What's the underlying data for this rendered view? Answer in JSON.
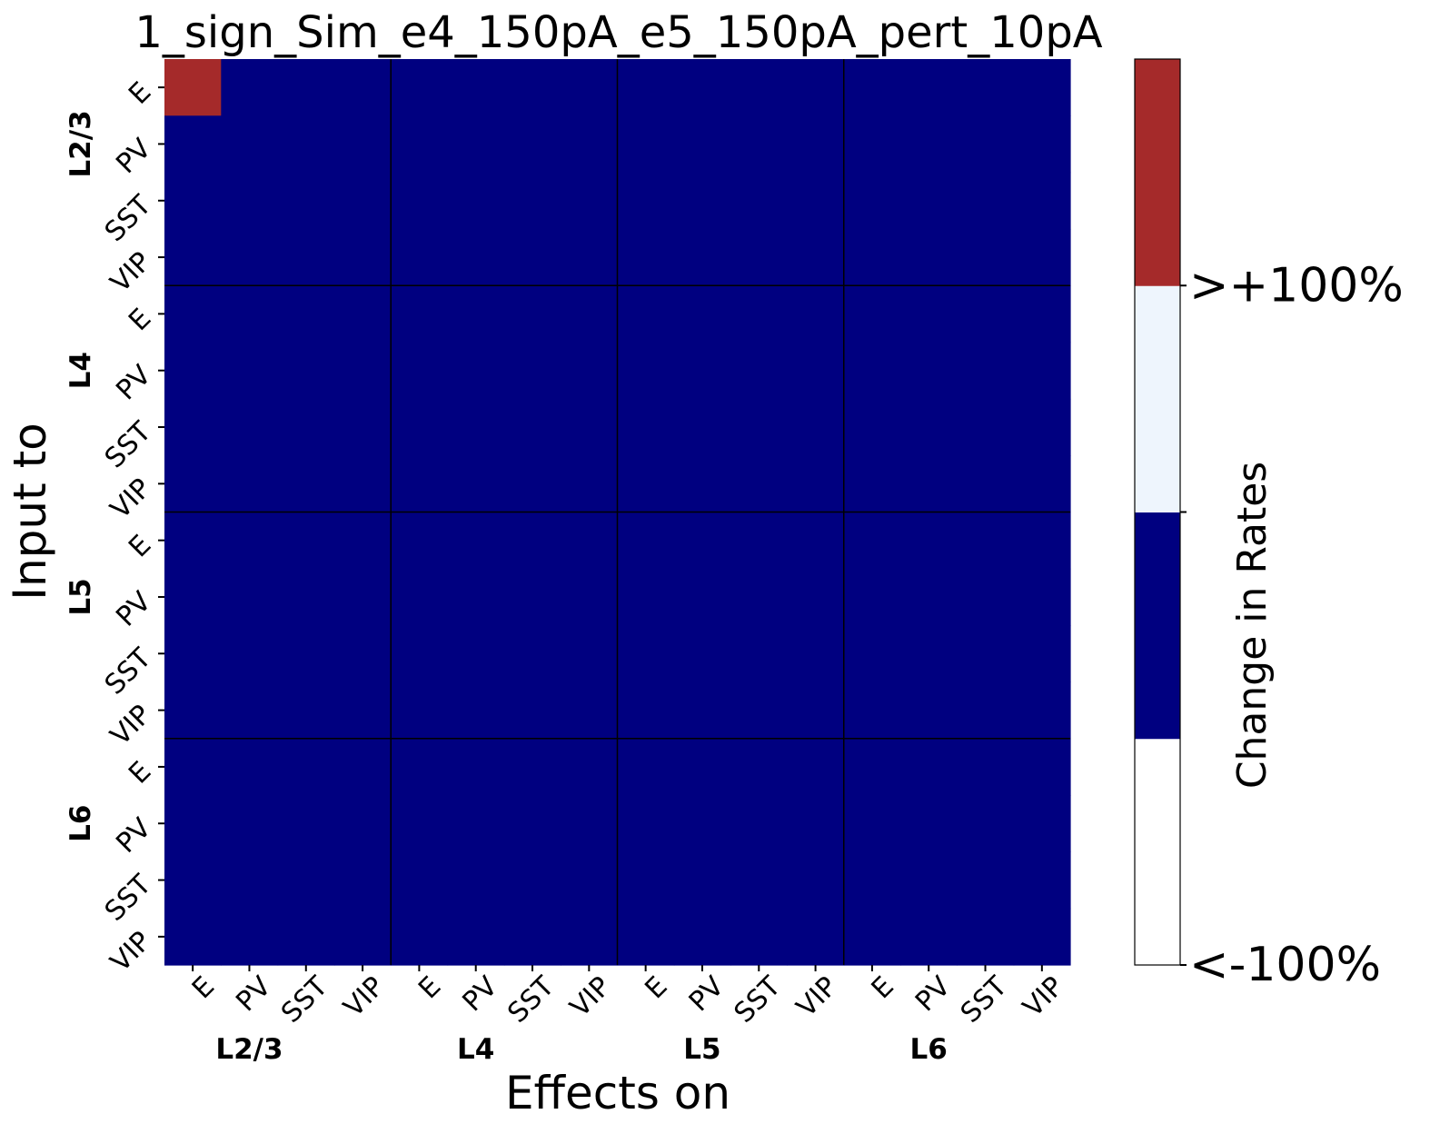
{
  "chart_data": {
    "type": "heatmap",
    "title": "1_sign_Sim_e4_150pA_e5_150pA_pert_10pA",
    "xlabel": "Effects on",
    "ylabel": "Input to",
    "cell_types": [
      "E",
      "PV",
      "SST",
      "VIP"
    ],
    "layers": [
      "L2/3",
      "L4",
      "L5",
      "L6"
    ],
    "x_tick_labels": [
      "E",
      "PV",
      "SST",
      "VIP",
      "E",
      "PV",
      "SST",
      "VIP",
      "E",
      "PV",
      "SST",
      "VIP",
      "E",
      "PV",
      "SST",
      "VIP"
    ],
    "y_tick_labels": [
      "E",
      "PV",
      "SST",
      "VIP",
      "E",
      "PV",
      "SST",
      "VIP",
      "E",
      "PV",
      "SST",
      "VIP",
      "E",
      "PV",
      "SST",
      "VIP"
    ],
    "matrix_levels": [
      [
        3,
        1,
        1,
        1,
        1,
        1,
        1,
        1,
        1,
        1,
        1,
        1,
        1,
        1,
        1,
        1
      ],
      [
        1,
        1,
        1,
        1,
        1,
        1,
        1,
        1,
        1,
        1,
        1,
        1,
        1,
        1,
        1,
        1
      ],
      [
        1,
        1,
        1,
        1,
        1,
        1,
        1,
        1,
        1,
        1,
        1,
        1,
        1,
        1,
        1,
        1
      ],
      [
        1,
        1,
        1,
        1,
        1,
        1,
        1,
        1,
        1,
        1,
        1,
        1,
        1,
        1,
        1,
        1
      ],
      [
        1,
        1,
        1,
        1,
        1,
        1,
        1,
        1,
        1,
        1,
        1,
        1,
        1,
        1,
        1,
        1
      ],
      [
        1,
        1,
        1,
        1,
        1,
        1,
        1,
        1,
        1,
        1,
        1,
        1,
        1,
        1,
        1,
        1
      ],
      [
        1,
        1,
        1,
        1,
        1,
        1,
        1,
        1,
        1,
        1,
        1,
        1,
        1,
        1,
        1,
        1
      ],
      [
        1,
        1,
        1,
        1,
        1,
        1,
        1,
        1,
        1,
        1,
        1,
        1,
        1,
        1,
        1,
        1
      ],
      [
        1,
        1,
        1,
        1,
        1,
        1,
        1,
        1,
        1,
        1,
        1,
        1,
        1,
        1,
        1,
        1
      ],
      [
        1,
        1,
        1,
        1,
        1,
        1,
        1,
        1,
        1,
        1,
        1,
        1,
        1,
        1,
        1,
        1
      ],
      [
        1,
        1,
        1,
        1,
        1,
        1,
        1,
        1,
        1,
        1,
        1,
        1,
        1,
        1,
        1,
        1
      ],
      [
        1,
        1,
        1,
        1,
        1,
        1,
        1,
        1,
        1,
        1,
        1,
        1,
        1,
        1,
        1,
        1
      ],
      [
        1,
        1,
        1,
        1,
        1,
        1,
        1,
        1,
        1,
        1,
        1,
        1,
        1,
        1,
        1,
        1
      ],
      [
        1,
        1,
        1,
        1,
        1,
        1,
        1,
        1,
        1,
        1,
        1,
        1,
        1,
        1,
        1,
        1
      ],
      [
        1,
        1,
        1,
        1,
        1,
        1,
        1,
        1,
        1,
        1,
        1,
        1,
        1,
        1,
        1,
        1
      ],
      [
        1,
        1,
        1,
        1,
        1,
        1,
        1,
        1,
        1,
        1,
        1,
        1,
        1,
        1,
        1,
        1
      ]
    ],
    "colorbar": {
      "label": "Change in Rates",
      "levels": [
        {
          "level": 0,
          "color": "#ffffff"
        },
        {
          "level": 1,
          "color": "#000080"
        },
        {
          "level": 2,
          "color": "#eef5fd"
        },
        {
          "level": 3,
          "color": "#a52a2a"
        }
      ],
      "tick_labels": [
        {
          "text": "<-100%",
          "at_level": 0
        },
        {
          "text": "",
          "at_level": 2
        },
        {
          "text": ">+100%",
          "at_level": 3
        }
      ]
    },
    "grid": "layer-block separators"
  }
}
